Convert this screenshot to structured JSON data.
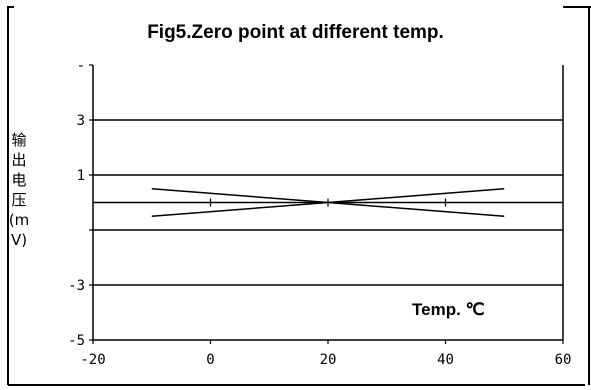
{
  "chart_data": {
    "type": "line",
    "title": "Fig5.Zero point at different temp.",
    "ylabel": "输出电压 (mV)",
    "xlabel": "",
    "annotation": "Temp. ℃",
    "x_ticks": [
      -20,
      0,
      20,
      40,
      60
    ],
    "y_ticks": [
      -5,
      -3,
      -1,
      1,
      3,
      5
    ],
    "y_tick_labels": [
      "-5",
      "-3",
      "",
      "1",
      "3",
      "-"
    ],
    "xlim": [
      -20,
      60
    ],
    "ylim": [
      -5,
      5
    ],
    "grid": "horizontal",
    "series": [
      {
        "x": [
          -10,
          20
        ],
        "y": [
          0.5,
          0
        ]
      },
      {
        "x": [
          -10,
          20
        ],
        "y": [
          -0.5,
          0
        ]
      },
      {
        "x": [
          20,
          50
        ],
        "y": [
          0,
          0.5
        ]
      },
      {
        "x": [
          20,
          50
        ],
        "y": [
          0,
          -0.5
        ]
      }
    ],
    "colors": {
      "line": "#000000",
      "grid": "#000000"
    }
  }
}
